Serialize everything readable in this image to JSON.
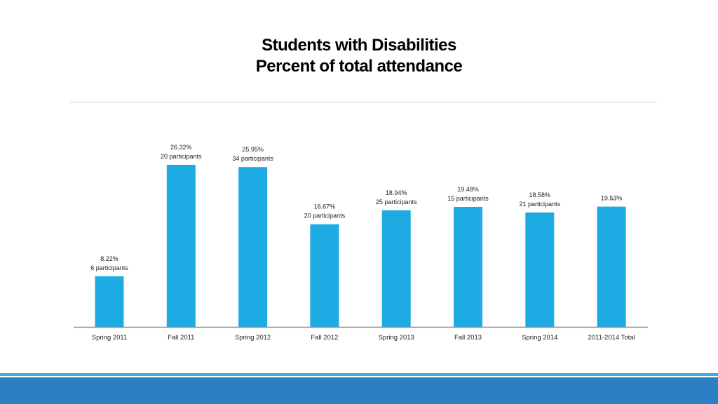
{
  "title": {
    "line1": "Students with Disabilities",
    "line2": "Percent of total attendance"
  },
  "colors": {
    "bar": "#1eabe3",
    "axis": "#888888",
    "footer_band": "#2b7fc3",
    "footer_line": "#3aaedc"
  },
  "chart_data": {
    "type": "bar",
    "title": "Students with Disabilities Percent of total attendance",
    "categories": [
      "Spring 2011",
      "Fall 2011",
      "Spring 2012",
      "Fall 2012",
      "Spring 2013",
      "Fall 2013",
      "Spring 2014",
      "2011-2014 Total"
    ],
    "values": [
      8.22,
      26.32,
      25.95,
      16.67,
      18.94,
      19.48,
      18.58,
      19.53
    ],
    "value_labels": [
      "8.22%",
      "26.32%",
      "25.95%",
      "16.67%",
      "18.94%",
      "19.48%",
      "18.58%",
      "19.53%"
    ],
    "participant_labels": [
      "6 participants",
      "20 participants",
      "34 participants",
      "20 participants",
      "25 participants",
      "15 participants",
      "21 participants",
      ""
    ],
    "ylim": [
      0,
      26.32
    ],
    "xlabel": "",
    "ylabel": "",
    "grid": false,
    "legend": "none"
  }
}
